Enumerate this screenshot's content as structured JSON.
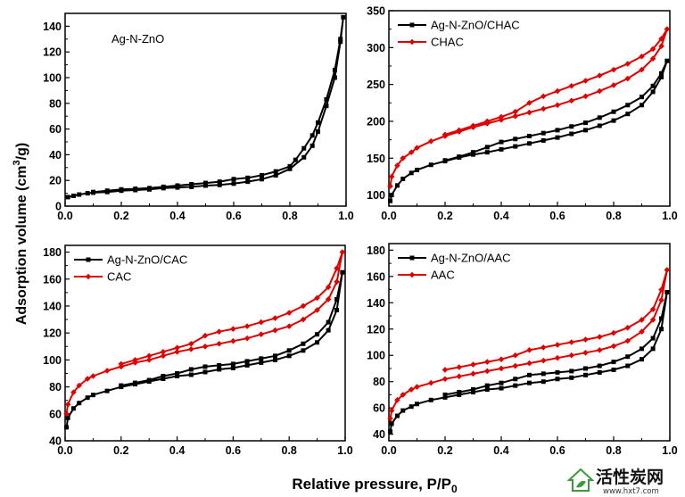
{
  "figure": {
    "xlabel": "Relative pressure, P/P",
    "xlabel_sub": "0",
    "ylabel": "Adsorption volume (cm",
    "ylabel_sup": "3",
    "ylabel_tail": "/g)"
  },
  "chart_data": [
    {
      "type": "line",
      "annotation": "Ag-N-ZnO",
      "xlim": [
        0,
        1
      ],
      "ylim": [
        0,
        150
      ],
      "xticks": [
        0.0,
        0.2,
        0.4,
        0.6,
        0.8,
        1.0
      ],
      "yticks": [
        0,
        20,
        40,
        60,
        80,
        100,
        120,
        140
      ],
      "legend": null,
      "series": [
        {
          "color": "#000000",
          "marker": "square",
          "x": [
            0.01,
            0.03,
            0.05,
            0.08,
            0.1,
            0.15,
            0.2,
            0.25,
            0.3,
            0.35,
            0.4,
            0.45,
            0.5,
            0.55,
            0.6,
            0.65,
            0.7,
            0.75,
            0.8,
            0.85,
            0.88,
            0.9,
            0.93,
            0.96,
            0.98,
            0.99,
            0.98,
            0.96,
            0.93,
            0.9,
            0.88,
            0.85,
            0.82,
            0.8,
            0.75,
            0.7,
            0.65,
            0.6,
            0.55,
            0.5,
            0.45,
            0.4,
            0.35,
            0.3,
            0.25,
            0.2,
            0.15,
            0.1
          ],
          "y": [
            7,
            8,
            9,
            10,
            10.5,
            11,
            12,
            12.5,
            13,
            14,
            14.5,
            15,
            16,
            16.5,
            17.5,
            19,
            21,
            24,
            29,
            38,
            47,
            58,
            78,
            100,
            128,
            147,
            130,
            106,
            83,
            65,
            55,
            45,
            36,
            31,
            27,
            24,
            22,
            21,
            19,
            18,
            17,
            16,
            15,
            14,
            13.5,
            13,
            12,
            11
          ]
        }
      ]
    },
    {
      "type": "line",
      "xlim": [
        0,
        1
      ],
      "ylim": [
        85,
        350
      ],
      "xticks": [
        0.0,
        0.2,
        0.4,
        0.6,
        0.8,
        1.0
      ],
      "yticks": [
        100,
        150,
        200,
        250,
        300,
        350
      ],
      "legend": "top-left",
      "series": [
        {
          "name": "Ag-N-ZnO/CHAC",
          "color": "#000000",
          "marker": "square",
          "x": [
            0.005,
            0.01,
            0.03,
            0.05,
            0.08,
            0.1,
            0.15,
            0.2,
            0.25,
            0.3,
            0.35,
            0.4,
            0.45,
            0.5,
            0.55,
            0.6,
            0.65,
            0.7,
            0.75,
            0.8,
            0.85,
            0.9,
            0.94,
            0.97,
            0.99,
            0.97,
            0.94,
            0.9,
            0.85,
            0.8,
            0.75,
            0.7,
            0.65,
            0.6,
            0.55,
            0.5,
            0.45,
            0.4,
            0.35,
            0.3,
            0.25,
            0.2
          ],
          "y": [
            92,
            100,
            113,
            122,
            130,
            134,
            141,
            146,
            151,
            155,
            158,
            162,
            166,
            170,
            174,
            178,
            183,
            188,
            194,
            201,
            210,
            222,
            240,
            260,
            282,
            265,
            248,
            233,
            222,
            213,
            205,
            198,
            193,
            188,
            184,
            180,
            176,
            172,
            165,
            158,
            152,
            147
          ]
        },
        {
          "name": "CHAC",
          "color": "#e00000",
          "marker": "diamond",
          "x": [
            0.005,
            0.01,
            0.03,
            0.05,
            0.08,
            0.1,
            0.15,
            0.2,
            0.25,
            0.3,
            0.35,
            0.4,
            0.45,
            0.5,
            0.55,
            0.6,
            0.65,
            0.7,
            0.75,
            0.8,
            0.85,
            0.9,
            0.94,
            0.97,
            0.99,
            0.97,
            0.94,
            0.9,
            0.85,
            0.8,
            0.75,
            0.7,
            0.65,
            0.6,
            0.55,
            0.5,
            0.45,
            0.4,
            0.35,
            0.3,
            0.25,
            0.2
          ],
          "y": [
            112,
            125,
            140,
            150,
            158,
            164,
            173,
            180,
            186,
            192,
            197,
            202,
            207,
            212,
            217,
            222,
            228,
            234,
            241,
            249,
            258,
            270,
            285,
            302,
            325,
            312,
            298,
            288,
            278,
            270,
            262,
            255,
            248,
            241,
            234,
            225,
            213,
            206,
            200,
            194,
            188,
            182
          ]
        }
      ]
    },
    {
      "type": "line",
      "xlim": [
        0,
        1
      ],
      "ylim": [
        40,
        185
      ],
      "xticks": [
        0.0,
        0.2,
        0.4,
        0.6,
        0.8,
        1.0
      ],
      "yticks": [
        40,
        60,
        80,
        100,
        120,
        140,
        160,
        180
      ],
      "legend": "top-left",
      "series": [
        {
          "name": "Ag-N-ZnO/CAC",
          "color": "#000000",
          "marker": "square",
          "x": [
            0.005,
            0.01,
            0.03,
            0.05,
            0.08,
            0.1,
            0.15,
            0.2,
            0.25,
            0.3,
            0.35,
            0.4,
            0.45,
            0.5,
            0.55,
            0.6,
            0.65,
            0.7,
            0.75,
            0.8,
            0.85,
            0.9,
            0.94,
            0.97,
            0.99,
            0.97,
            0.94,
            0.9,
            0.85,
            0.8,
            0.75,
            0.7,
            0.65,
            0.6,
            0.55,
            0.5,
            0.45,
            0.4,
            0.35,
            0.3,
            0.25,
            0.2
          ],
          "y": [
            50,
            57,
            64,
            68,
            72,
            74,
            77,
            80,
            82,
            84,
            86,
            88,
            89,
            91,
            93,
            94,
            96,
            98,
            100,
            103,
            107,
            113,
            122,
            137,
            165,
            145,
            128,
            119,
            112,
            107,
            103,
            101,
            99,
            97,
            96,
            95,
            93,
            90,
            88,
            85,
            83,
            81
          ]
        },
        {
          "name": "CAC",
          "color": "#e00000",
          "marker": "diamond",
          "x": [
            0.005,
            0.01,
            0.03,
            0.05,
            0.08,
            0.1,
            0.15,
            0.2,
            0.25,
            0.3,
            0.35,
            0.4,
            0.45,
            0.5,
            0.55,
            0.6,
            0.65,
            0.7,
            0.75,
            0.8,
            0.85,
            0.9,
            0.94,
            0.97,
            0.99,
            0.97,
            0.94,
            0.9,
            0.85,
            0.8,
            0.75,
            0.7,
            0.65,
            0.6,
            0.55,
            0.5,
            0.45,
            0.4,
            0.35,
            0.3,
            0.25,
            0.2
          ],
          "y": [
            60,
            67,
            76,
            81,
            86,
            88,
            92,
            95,
            98,
            100,
            103,
            106,
            108,
            110,
            112,
            114,
            116,
            119,
            122,
            125,
            130,
            137,
            145,
            158,
            180,
            168,
            154,
            146,
            140,
            135,
            131,
            128,
            125,
            123,
            121,
            118,
            112,
            109,
            106,
            103,
            100,
            97
          ]
        }
      ]
    },
    {
      "type": "line",
      "xlim": [
        0,
        1
      ],
      "ylim": [
        35,
        185
      ],
      "xticks": [
        0.0,
        0.2,
        0.4,
        0.6,
        0.8,
        1.0
      ],
      "yticks": [
        40,
        60,
        80,
        100,
        120,
        140,
        160,
        180
      ],
      "legend": "top-left",
      "series": [
        {
          "name": "Ag-N-ZnO/AAC",
          "color": "#000000",
          "marker": "square",
          "x": [
            0.005,
            0.01,
            0.03,
            0.05,
            0.08,
            0.1,
            0.15,
            0.2,
            0.25,
            0.3,
            0.35,
            0.4,
            0.45,
            0.5,
            0.55,
            0.6,
            0.65,
            0.7,
            0.75,
            0.8,
            0.85,
            0.9,
            0.94,
            0.97,
            0.99,
            0.97,
            0.94,
            0.9,
            0.85,
            0.8,
            0.75,
            0.7,
            0.65,
            0.6,
            0.55,
            0.5,
            0.45,
            0.4,
            0.35,
            0.3,
            0.25,
            0.2
          ],
          "y": [
            42,
            48,
            54,
            58,
            61,
            63,
            66,
            68,
            70,
            72,
            74,
            75,
            77,
            79,
            80,
            82,
            83,
            85,
            87,
            89,
            92,
            97,
            105,
            120,
            148,
            128,
            113,
            105,
            99,
            95,
            92,
            90,
            88,
            87,
            86,
            85,
            82,
            79,
            77,
            74,
            72,
            70
          ]
        },
        {
          "name": "AAC",
          "color": "#e00000",
          "marker": "diamond",
          "x": [
            0.005,
            0.01,
            0.03,
            0.05,
            0.08,
            0.1,
            0.15,
            0.2,
            0.25,
            0.3,
            0.35,
            0.4,
            0.45,
            0.5,
            0.55,
            0.6,
            0.65,
            0.7,
            0.75,
            0.8,
            0.85,
            0.9,
            0.94,
            0.97,
            0.99,
            0.97,
            0.94,
            0.9,
            0.85,
            0.8,
            0.75,
            0.7,
            0.65,
            0.6,
            0.55,
            0.5,
            0.45,
            0.4,
            0.35,
            0.3,
            0.25,
            0.2
          ],
          "y": [
            52,
            58,
            66,
            70,
            74,
            76,
            79,
            82,
            84,
            86,
            88,
            90,
            92,
            94,
            96,
            98,
            100,
            102,
            104,
            107,
            111,
            118,
            127,
            142,
            165,
            150,
            135,
            127,
            121,
            117,
            114,
            112,
            110,
            108,
            106,
            104,
            100,
            97,
            95,
            93,
            91,
            89
          ]
        }
      ]
    }
  ],
  "watermark": {
    "title": "活性炭网",
    "url": "www.hxt7.com"
  }
}
